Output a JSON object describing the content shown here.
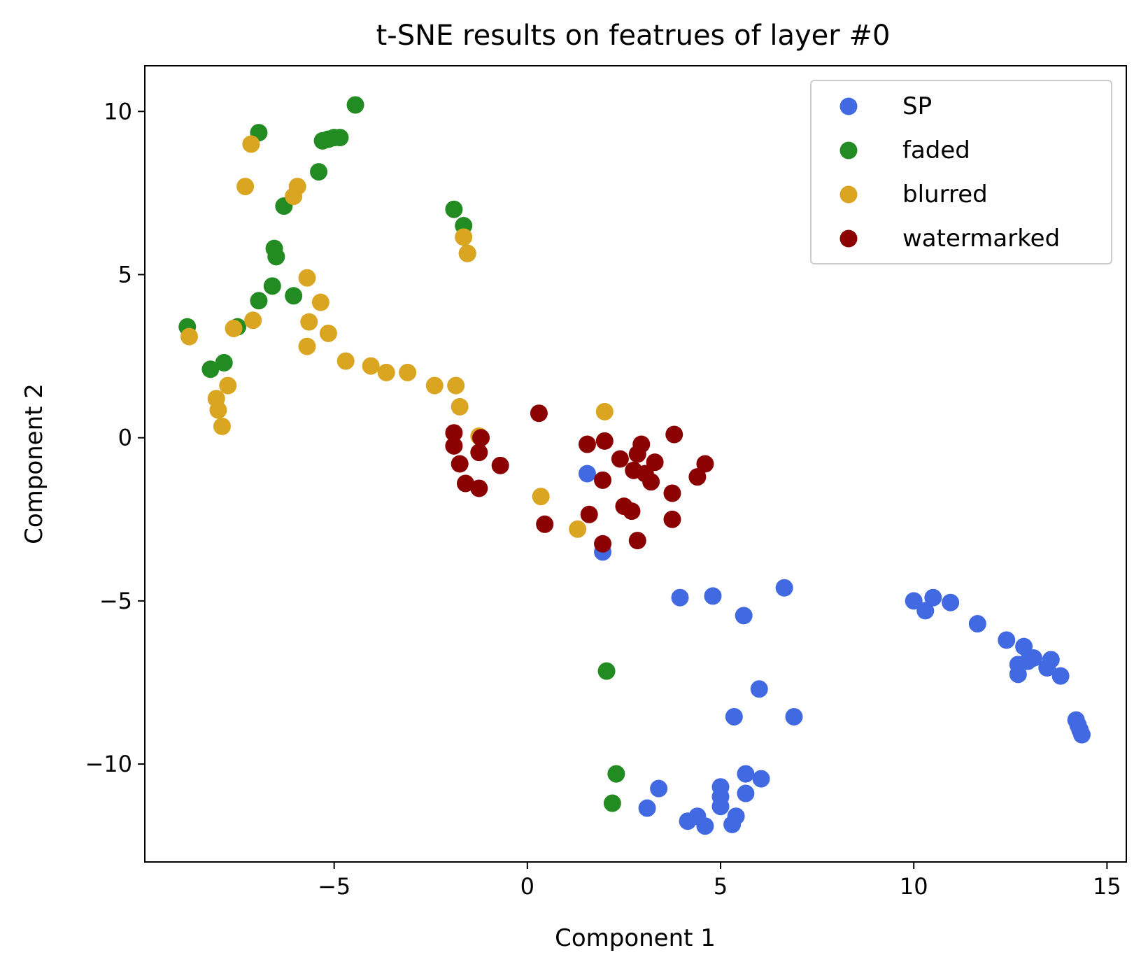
{
  "chart_data": {
    "type": "scatter",
    "title": "t-SNE results on featrues of layer #0",
    "xlabel": "Component 1",
    "ylabel": "Component 2",
    "xlim": [
      -9.9,
      15.5
    ],
    "ylim": [
      -13.0,
      11.4
    ],
    "xticks": [
      -5,
      0,
      5,
      10,
      15
    ],
    "yticks": [
      -10,
      -5,
      0,
      5,
      10
    ],
    "xtick_labels": [
      "−5",
      "0",
      "5",
      "10",
      "15"
    ],
    "ytick_labels": [
      "−10",
      "−5",
      "0",
      "5",
      "10"
    ],
    "grid": false,
    "legend_position": "top-right",
    "series": [
      {
        "name": "SP",
        "color": "#4169e1",
        "points": [
          [
            1.55,
            -1.1
          ],
          [
            1.95,
            -3.5
          ],
          [
            3.95,
            -4.9
          ],
          [
            4.8,
            -4.85
          ],
          [
            5.6,
            -5.45
          ],
          [
            6.65,
            -4.6
          ],
          [
            6.0,
            -7.7
          ],
          [
            5.35,
            -8.55
          ],
          [
            6.9,
            -8.55
          ],
          [
            3.4,
            -10.75
          ],
          [
            3.1,
            -11.35
          ],
          [
            4.15,
            -11.75
          ],
          [
            4.4,
            -11.6
          ],
          [
            4.6,
            -11.9
          ],
          [
            5.0,
            -10.7
          ],
          [
            5.0,
            -11.0
          ],
          [
            5.0,
            -11.3
          ],
          [
            5.3,
            -11.85
          ],
          [
            5.4,
            -11.6
          ],
          [
            5.65,
            -10.3
          ],
          [
            5.65,
            -10.9
          ],
          [
            6.05,
            -10.45
          ],
          [
            10.0,
            -5.0
          ],
          [
            10.3,
            -5.3
          ],
          [
            10.5,
            -4.9
          ],
          [
            10.95,
            -5.05
          ],
          [
            11.65,
            -5.7
          ],
          [
            12.4,
            -6.2
          ],
          [
            12.7,
            -6.95
          ],
          [
            12.7,
            -7.25
          ],
          [
            12.85,
            -6.4
          ],
          [
            12.95,
            -6.85
          ],
          [
            13.1,
            -6.75
          ],
          [
            13.45,
            -7.05
          ],
          [
            13.55,
            -6.8
          ],
          [
            13.8,
            -7.3
          ],
          [
            14.2,
            -8.65
          ],
          [
            14.25,
            -8.8
          ],
          [
            14.3,
            -8.95
          ],
          [
            14.35,
            -9.1
          ]
        ]
      },
      {
        "name": "faded",
        "color": "#228b22",
        "points": [
          [
            -4.45,
            10.2
          ],
          [
            -6.95,
            9.35
          ],
          [
            -5.3,
            9.1
          ],
          [
            -5.15,
            9.15
          ],
          [
            -5.0,
            9.2
          ],
          [
            -4.85,
            9.2
          ],
          [
            -5.4,
            8.15
          ],
          [
            -6.3,
            7.1
          ],
          [
            -1.9,
            7.0
          ],
          [
            -1.65,
            6.5
          ],
          [
            -1.55,
            5.65
          ],
          [
            -6.55,
            5.8
          ],
          [
            -6.5,
            5.55
          ],
          [
            -6.6,
            4.65
          ],
          [
            -6.95,
            4.2
          ],
          [
            -6.05,
            4.35
          ],
          [
            -8.8,
            3.4
          ],
          [
            -7.5,
            3.4
          ],
          [
            -8.2,
            2.1
          ],
          [
            -7.85,
            2.3
          ],
          [
            2.05,
            -7.15
          ],
          [
            2.3,
            -10.3
          ],
          [
            2.2,
            -11.2
          ]
        ]
      },
      {
        "name": "blurred",
        "color": "#daa520",
        "points": [
          [
            -7.15,
            9.0
          ],
          [
            -7.3,
            7.7
          ],
          [
            -5.95,
            7.7
          ],
          [
            -6.05,
            7.4
          ],
          [
            -1.65,
            6.15
          ],
          [
            -1.55,
            5.65
          ],
          [
            -5.7,
            4.9
          ],
          [
            -5.35,
            4.15
          ],
          [
            -5.65,
            3.55
          ],
          [
            -5.15,
            3.2
          ],
          [
            -7.1,
            3.6
          ],
          [
            -7.6,
            3.35
          ],
          [
            -8.75,
            3.1
          ],
          [
            -5.7,
            2.8
          ],
          [
            -4.7,
            2.35
          ],
          [
            -4.05,
            2.2
          ],
          [
            -3.65,
            2.0
          ],
          [
            -3.1,
            2.0
          ],
          [
            -2.4,
            1.6
          ],
          [
            -1.85,
            1.6
          ],
          [
            -1.75,
            0.95
          ],
          [
            -7.75,
            1.6
          ],
          [
            -8.05,
            1.2
          ],
          [
            -8.0,
            0.85
          ],
          [
            -7.9,
            0.35
          ],
          [
            -1.25,
            0.05
          ],
          [
            2.0,
            0.8
          ],
          [
            0.35,
            -1.8
          ],
          [
            1.3,
            -2.8
          ]
        ]
      },
      {
        "name": "watermarked",
        "color": "#8b0000",
        "points": [
          [
            0.3,
            0.75
          ],
          [
            -1.9,
            0.15
          ],
          [
            -1.9,
            -0.25
          ],
          [
            -1.75,
            -0.8
          ],
          [
            -1.6,
            -1.4
          ],
          [
            -1.25,
            -1.55
          ],
          [
            -1.2,
            0.0
          ],
          [
            -1.25,
            -0.45
          ],
          [
            -0.7,
            -0.85
          ],
          [
            0.45,
            -2.65
          ],
          [
            1.55,
            -0.2
          ],
          [
            2.0,
            -0.1
          ],
          [
            1.95,
            -1.3
          ],
          [
            1.6,
            -2.35
          ],
          [
            1.95,
            -3.25
          ],
          [
            2.4,
            -0.65
          ],
          [
            2.5,
            -2.1
          ],
          [
            2.7,
            -2.25
          ],
          [
            2.75,
            -1.0
          ],
          [
            2.85,
            -0.5
          ],
          [
            2.95,
            -0.2
          ],
          [
            3.05,
            -1.1
          ],
          [
            3.2,
            -1.35
          ],
          [
            3.3,
            -0.75
          ],
          [
            2.85,
            -3.15
          ],
          [
            3.8,
            0.1
          ],
          [
            3.75,
            -1.7
          ],
          [
            3.75,
            -2.5
          ],
          [
            4.4,
            -1.2
          ],
          [
            4.6,
            -0.8
          ]
        ]
      }
    ]
  }
}
